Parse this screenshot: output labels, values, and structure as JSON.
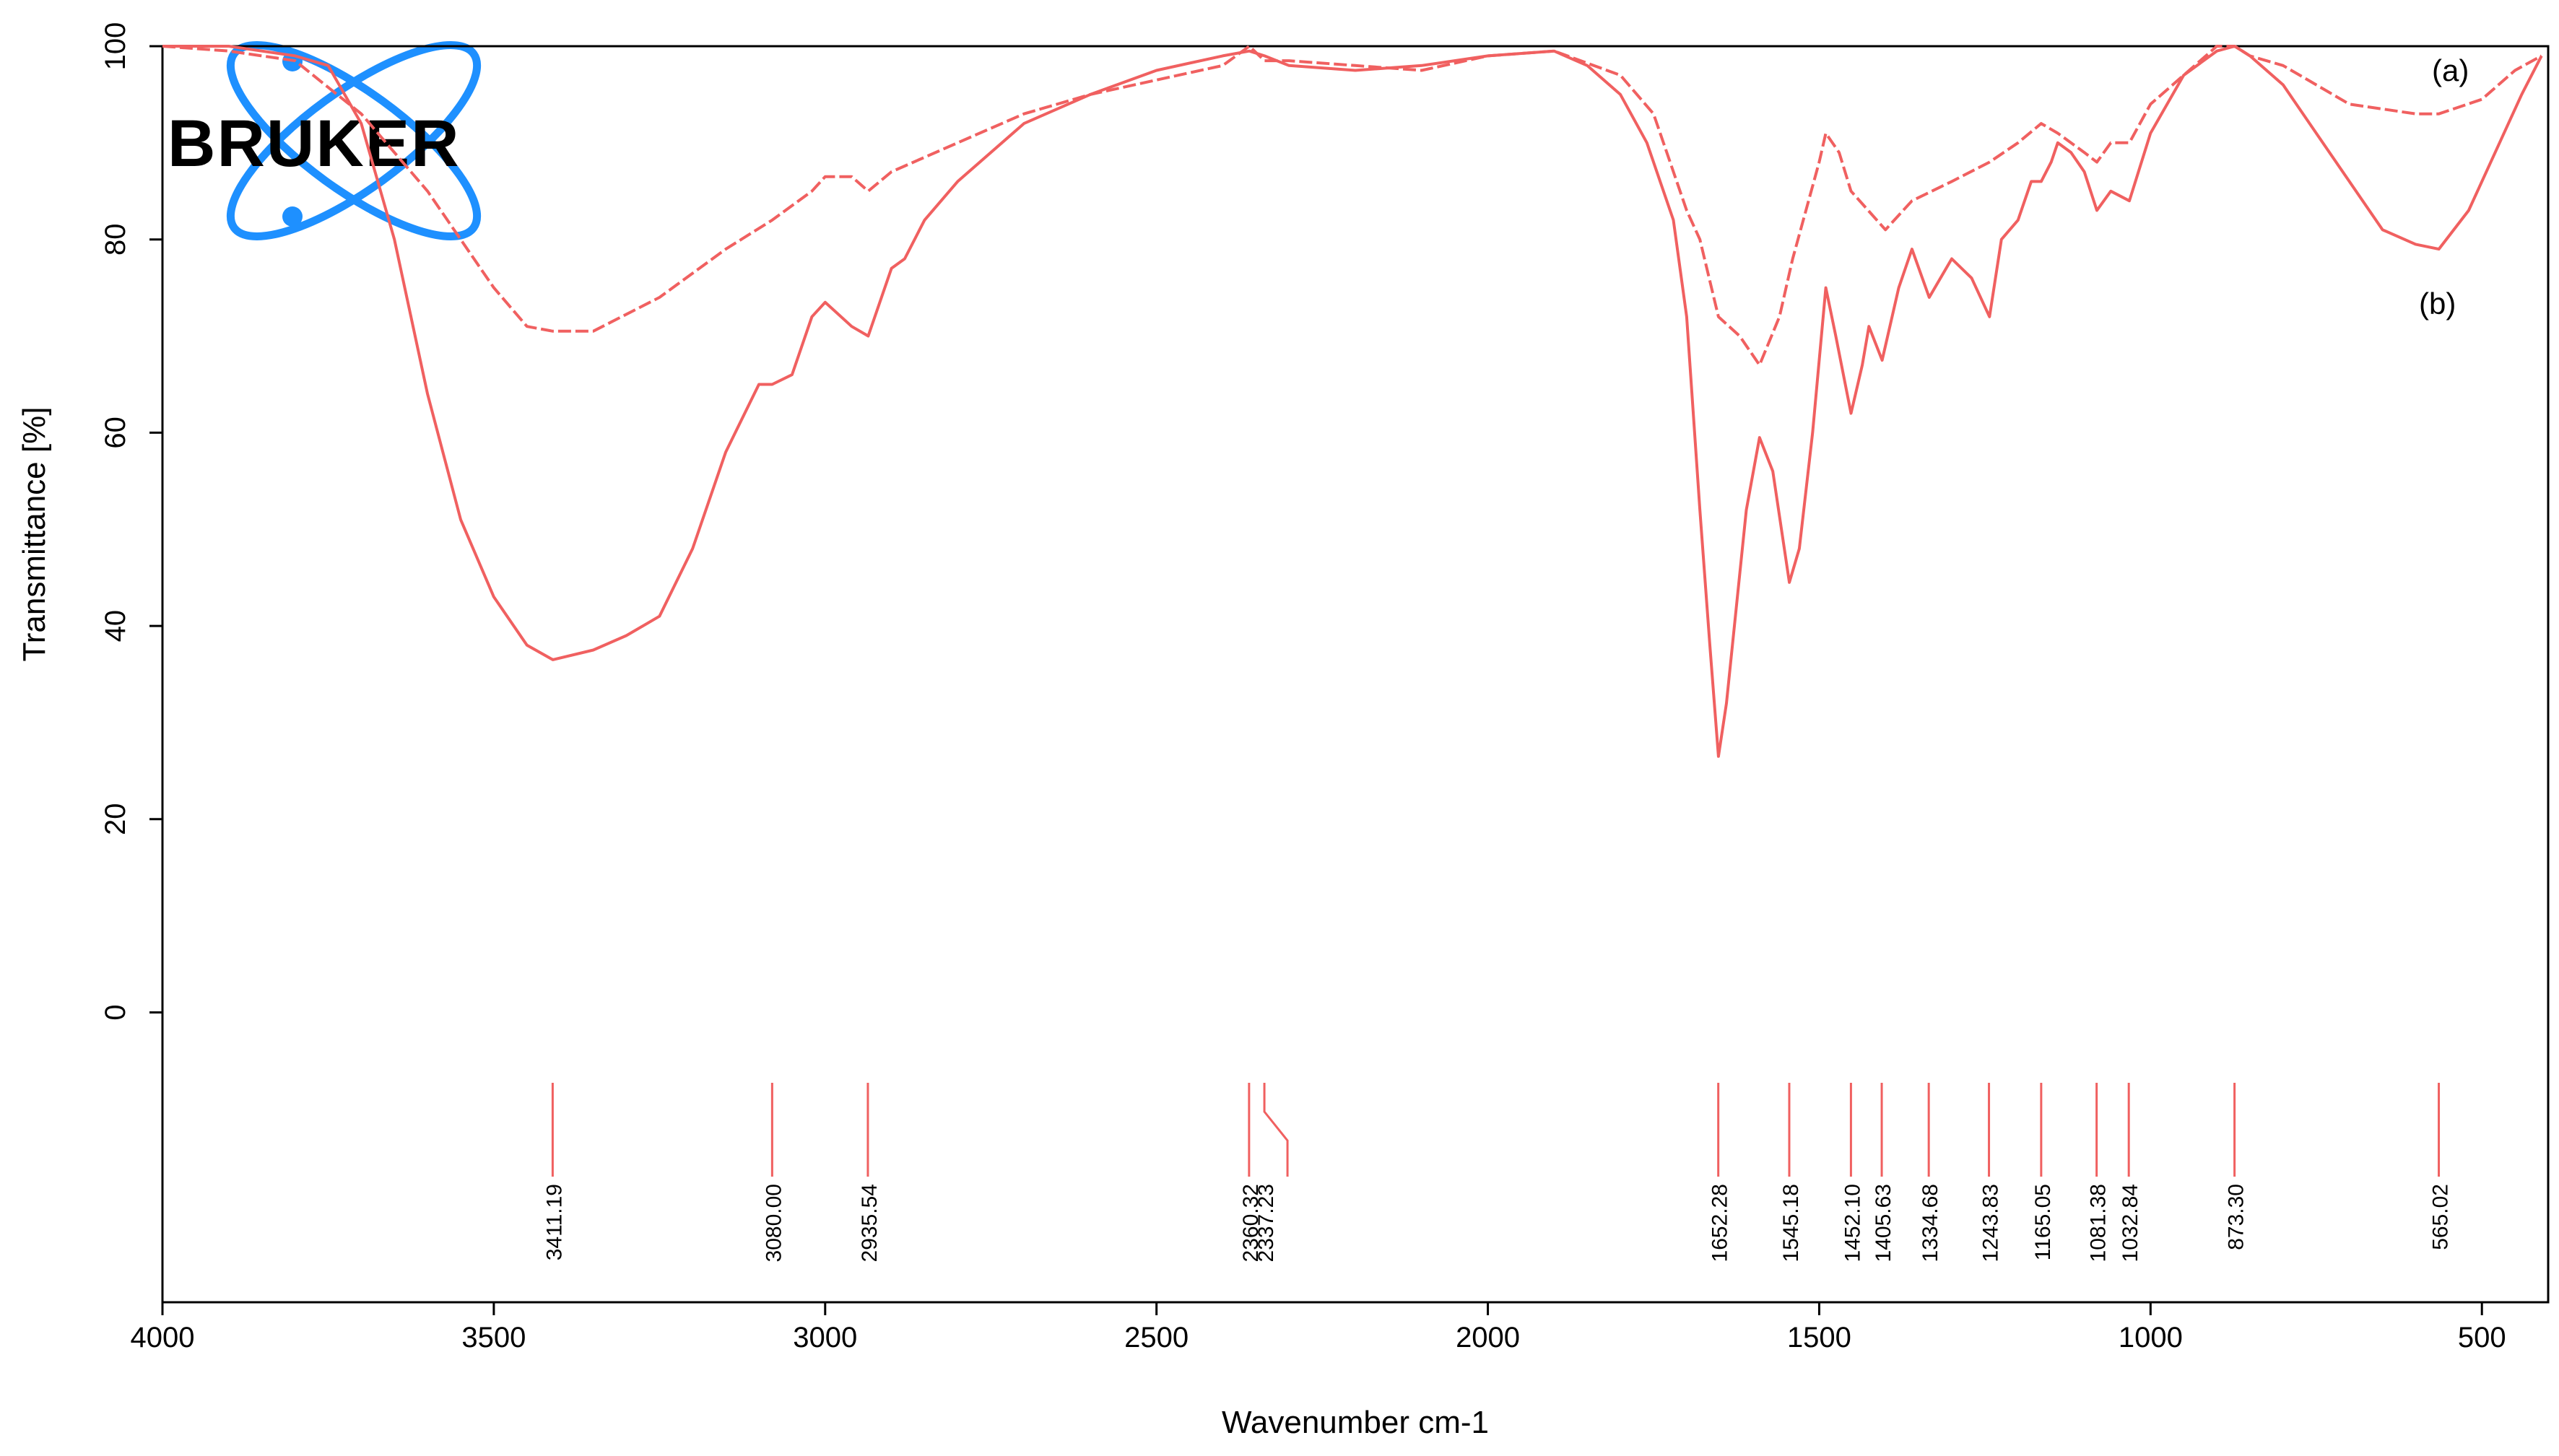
{
  "logo": {
    "text": "BRUKER",
    "color": "#1e90ff"
  },
  "chart_data": {
    "type": "line",
    "xlabel": "Wavenumber cm-1",
    "ylabel": "Transmittance [%]",
    "xlim": [
      4000,
      400
    ],
    "ylim": [
      -30,
      100
    ],
    "x_ticks": [
      4000,
      3500,
      3000,
      2500,
      2000,
      1500,
      1000,
      500
    ],
    "y_ticks": [
      0,
      20,
      40,
      60,
      80,
      100
    ],
    "grid": false,
    "line_color": "#f06060",
    "series": [
      {
        "name": "(a)",
        "values": [
          [
            4000,
            100
          ],
          [
            3900,
            99.5
          ],
          [
            3800,
            98.5
          ],
          [
            3700,
            93
          ],
          [
            3600,
            85
          ],
          [
            3500,
            75
          ],
          [
            3450,
            71
          ],
          [
            3411,
            70.5
          ],
          [
            3350,
            70.5
          ],
          [
            3250,
            74
          ],
          [
            3150,
            79
          ],
          [
            3080,
            82
          ],
          [
            3020,
            85
          ],
          [
            3000,
            86.5
          ],
          [
            2960,
            86.5
          ],
          [
            2935,
            85
          ],
          [
            2900,
            87
          ],
          [
            2800,
            90
          ],
          [
            2700,
            93
          ],
          [
            2600,
            95
          ],
          [
            2500,
            96.5
          ],
          [
            2400,
            98
          ],
          [
            2360,
            100
          ],
          [
            2337,
            98.5
          ],
          [
            2300,
            98.5
          ],
          [
            2200,
            98
          ],
          [
            2100,
            97.5
          ],
          [
            2000,
            99
          ],
          [
            1900,
            99.5
          ],
          [
            1800,
            97
          ],
          [
            1750,
            93
          ],
          [
            1700,
            83
          ],
          [
            1680,
            80
          ],
          [
            1652,
            72
          ],
          [
            1620,
            70
          ],
          [
            1590,
            67
          ],
          [
            1560,
            72
          ],
          [
            1540,
            78
          ],
          [
            1500,
            88
          ],
          [
            1490,
            91
          ],
          [
            1470,
            89
          ],
          [
            1452,
            85
          ],
          [
            1400,
            81
          ],
          [
            1360,
            84
          ],
          [
            1300,
            86
          ],
          [
            1243,
            88
          ],
          [
            1200,
            90
          ],
          [
            1165,
            92
          ],
          [
            1140,
            91
          ],
          [
            1100,
            89
          ],
          [
            1081,
            88
          ],
          [
            1060,
            90
          ],
          [
            1032,
            90
          ],
          [
            1000,
            94
          ],
          [
            950,
            97
          ],
          [
            900,
            100
          ],
          [
            873,
            100
          ],
          [
            850,
            99
          ],
          [
            800,
            98
          ],
          [
            750,
            96
          ],
          [
            700,
            94
          ],
          [
            650,
            93.5
          ],
          [
            600,
            93
          ],
          [
            565,
            93
          ],
          [
            500,
            94.5
          ],
          [
            450,
            97.5
          ],
          [
            410,
            99
          ]
        ]
      },
      {
        "name": "(b)",
        "values": [
          [
            4000,
            100
          ],
          [
            3900,
            100
          ],
          [
            3800,
            99
          ],
          [
            3750,
            98
          ],
          [
            3700,
            92
          ],
          [
            3650,
            80
          ],
          [
            3600,
            64
          ],
          [
            3550,
            51
          ],
          [
            3500,
            43
          ],
          [
            3450,
            38
          ],
          [
            3411,
            36.5
          ],
          [
            3350,
            37.5
          ],
          [
            3300,
            39
          ],
          [
            3250,
            41
          ],
          [
            3200,
            48
          ],
          [
            3150,
            58
          ],
          [
            3100,
            65
          ],
          [
            3080,
            65
          ],
          [
            3050,
            66
          ],
          [
            3020,
            72
          ],
          [
            3000,
            73.5
          ],
          [
            2960,
            71
          ],
          [
            2935,
            70
          ],
          [
            2900,
            77
          ],
          [
            2880,
            78
          ],
          [
            2850,
            82
          ],
          [
            2800,
            86
          ],
          [
            2700,
            92
          ],
          [
            2600,
            95
          ],
          [
            2500,
            97.5
          ],
          [
            2400,
            99
          ],
          [
            2360,
            99.5
          ],
          [
            2337,
            99
          ],
          [
            2300,
            98
          ],
          [
            2200,
            97.5
          ],
          [
            2100,
            98
          ],
          [
            2000,
            99
          ],
          [
            1900,
            99.5
          ],
          [
            1850,
            98
          ],
          [
            1800,
            95
          ],
          [
            1760,
            90
          ],
          [
            1720,
            82
          ],
          [
            1700,
            72
          ],
          [
            1680,
            52
          ],
          [
            1665,
            38
          ],
          [
            1652,
            26.5
          ],
          [
            1640,
            32
          ],
          [
            1610,
            52
          ],
          [
            1590,
            59.5
          ],
          [
            1570,
            56
          ],
          [
            1545,
            44.5
          ],
          [
            1530,
            48
          ],
          [
            1510,
            60
          ],
          [
            1490,
            75
          ],
          [
            1475,
            70
          ],
          [
            1452,
            62
          ],
          [
            1435,
            67
          ],
          [
            1425,
            71
          ],
          [
            1405,
            67.5
          ],
          [
            1380,
            75
          ],
          [
            1360,
            79
          ],
          [
            1334,
            74
          ],
          [
            1300,
            78
          ],
          [
            1270,
            76
          ],
          [
            1243,
            72
          ],
          [
            1225,
            80
          ],
          [
            1200,
            82
          ],
          [
            1180,
            86
          ],
          [
            1165,
            86
          ],
          [
            1150,
            88
          ],
          [
            1140,
            90
          ],
          [
            1120,
            89
          ],
          [
            1100,
            87
          ],
          [
            1081,
            83
          ],
          [
            1060,
            85
          ],
          [
            1032,
            84
          ],
          [
            1000,
            91
          ],
          [
            950,
            97
          ],
          [
            900,
            99.5
          ],
          [
            873,
            100
          ],
          [
            850,
            99
          ],
          [
            800,
            96
          ],
          [
            750,
            91
          ],
          [
            700,
            86
          ],
          [
            650,
            81
          ],
          [
            600,
            79.5
          ],
          [
            565,
            79
          ],
          [
            520,
            83
          ],
          [
            480,
            89
          ],
          [
            440,
            95
          ],
          [
            410,
            99
          ]
        ]
      }
    ],
    "curve_labels": [
      "(a)",
      "(b)"
    ],
    "peaks": [
      "3411.19",
      "3080.00",
      "2935.54",
      "2360.32",
      "2337.23",
      "1652.28",
      "1545.18",
      "1452.10",
      "1405.63",
      "1334.68",
      "1243.83",
      "1165.05",
      "1081.38",
      "1032.84",
      "873.30",
      "565.02"
    ]
  }
}
